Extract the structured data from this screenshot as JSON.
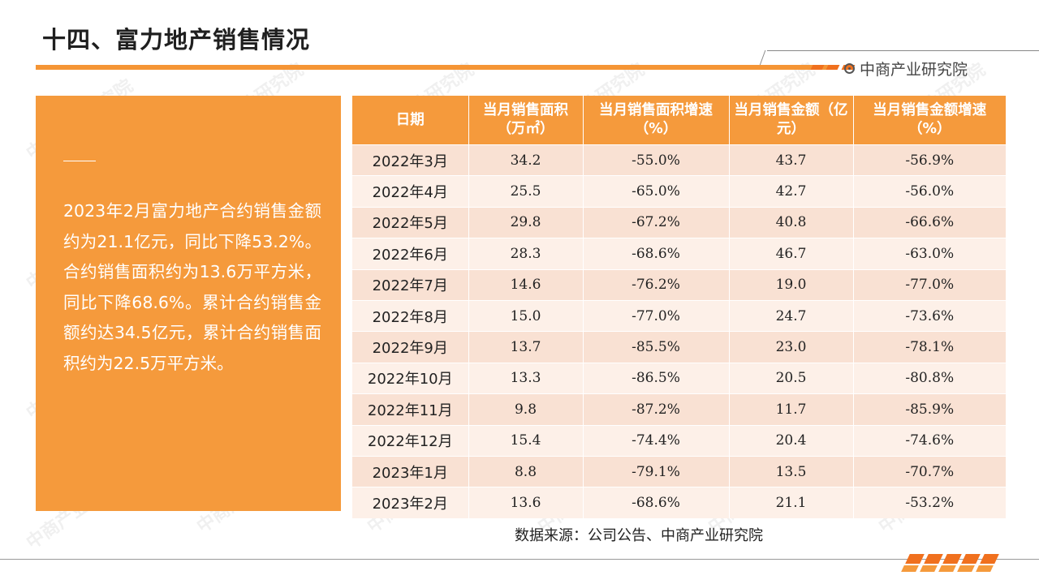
{
  "page": {
    "title": "十四、富力地产销售情况",
    "brand": "中商产业研究院",
    "watermark": "中商产业研究院"
  },
  "summary": {
    "paragraph": "2023年2月富力地产合约销售金额约为21.1亿元，同比下降53.2%。合约销售面积约为13.6万平方米，同比下降68.6%。累计合约销售金额约达34.5亿元，累计合约销售面积约为22.5万平方米。"
  },
  "table": {
    "headers": [
      "日期",
      "当月销售面积（万㎡）",
      "当月销售面积增速（%）",
      "当月销售金额（亿元）",
      "当月销售金额增速（%）"
    ],
    "rows": [
      [
        "2022年3月",
        "34.2",
        "-55.0%",
        "43.7",
        "-56.9%"
      ],
      [
        "2022年4月",
        "25.5",
        "-65.0%",
        "42.7",
        "-56.0%"
      ],
      [
        "2022年5月",
        "29.8",
        "-67.2%",
        "40.8",
        "-66.6%"
      ],
      [
        "2022年6月",
        "28.3",
        "-68.6%",
        "46.7",
        "-63.0%"
      ],
      [
        "2022年7月",
        "14.6",
        "-76.2%",
        "19.0",
        "-77.0%"
      ],
      [
        "2022年8月",
        "15.0",
        "-77.0%",
        "24.7",
        "-73.6%"
      ],
      [
        "2022年9月",
        "13.7",
        "-85.5%",
        "23.0",
        "-78.1%"
      ],
      [
        "2022年10月",
        "13.3",
        "-86.5%",
        "20.5",
        "-80.8%"
      ],
      [
        "2022年11月",
        "9.8",
        "-87.2%",
        "11.7",
        "-85.9%"
      ],
      [
        "2022年12月",
        "15.4",
        "-74.4%",
        "20.4",
        "-74.6%"
      ],
      [
        "2023年1月",
        "8.8",
        "-79.1%",
        "13.5",
        "-70.7%"
      ],
      [
        "2023年2月",
        "13.6",
        "-68.6%",
        "21.1",
        "-53.2%"
      ]
    ]
  },
  "source": "数据来源：公司公告、中商产业研究院",
  "colors": {
    "accent": "#f59a3c",
    "accent_dark": "#f0701e",
    "row_odd": "#f9e1d3",
    "row_even": "#fdf0e8"
  }
}
